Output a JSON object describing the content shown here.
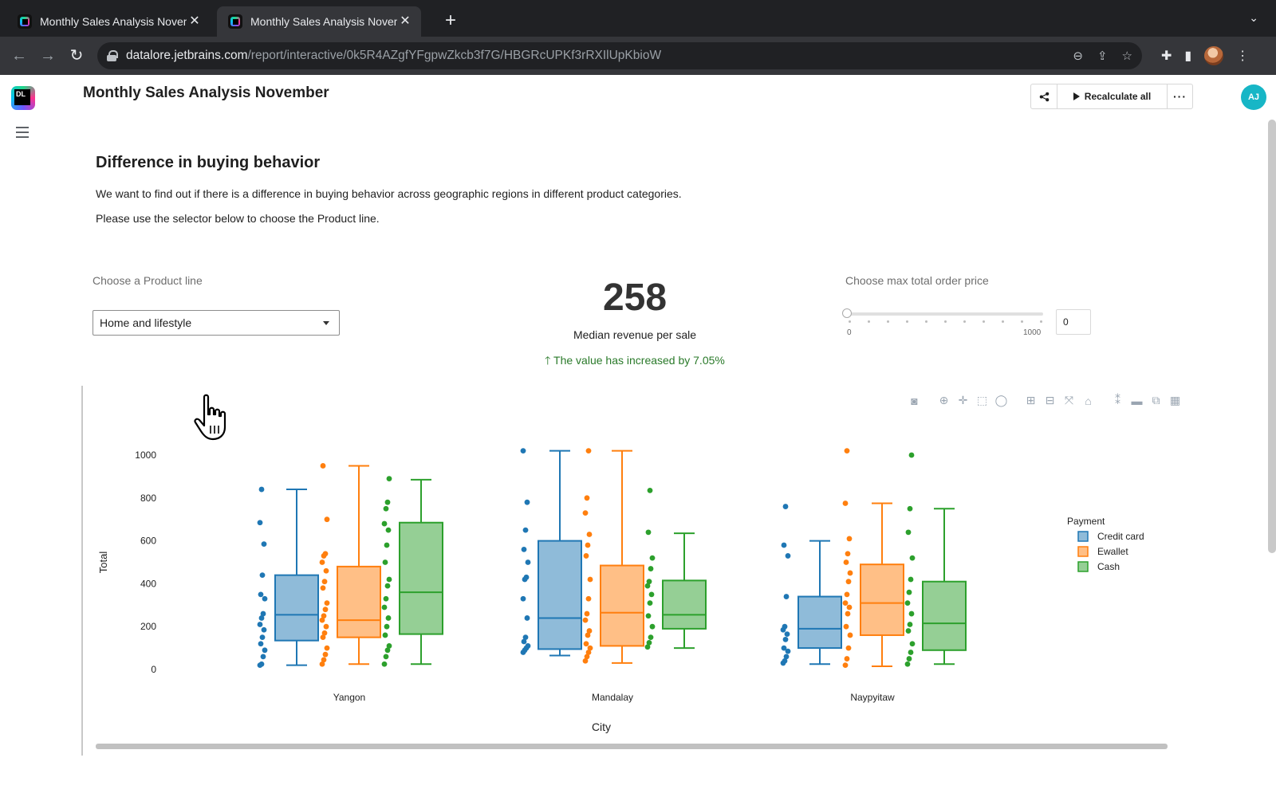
{
  "browser": {
    "tabs": [
      {
        "title": "Monthly Sales Analysis November",
        "active": false
      },
      {
        "title": "Monthly Sales Analysis November",
        "active": true
      }
    ],
    "url_host": "datalore.jetbrains.com",
    "url_path": "/report/interactive/0k5R4AZgfYFgpwZkcb3f7G/HBGRcUPKf3rRXIlUpKbioW"
  },
  "app": {
    "logo_text": "DL",
    "report_title": "Monthly Sales Analysis November",
    "recalculate_label": "Recalculate all",
    "more_label": "···",
    "user_initials": "AJ"
  },
  "section": {
    "title": "Difference in buying behavior",
    "paragraph1": "We want to find out if there is a difference in buying behavior across geographic regions in different product categories.",
    "paragraph2": "Please use the selector below to choose the Product line."
  },
  "controls": {
    "product_label": "Choose a Product line",
    "product_value": "Home and lifestyle",
    "kpi_value": "258",
    "kpi_label": "Median revenue per sale",
    "kpi_delta": "The value has increased by 7.05%",
    "price_label": "Choose max total order price",
    "slider_min": "0",
    "slider_max": "1000",
    "slider_value_fraction": 0,
    "price_input_value": "0"
  },
  "colors": {
    "credit_card": "#1f77b4",
    "ewallet": "#ff7f0e",
    "cash": "#2ca02c",
    "kpi_up": "#2a7a2a"
  },
  "chart_data": {
    "type": "box",
    "xlabel": "City",
    "ylabel": "Total",
    "ylim": [
      0,
      1000
    ],
    "yticks": [
      0,
      200,
      400,
      600,
      800,
      1000
    ],
    "categories": [
      "Yangon",
      "Mandalay",
      "Naypyitaw"
    ],
    "legend_title": "Payment",
    "legend_position": "top-right",
    "series": [
      {
        "name": "Credit card",
        "color": "#1f77b4",
        "boxes": [
          {
            "min": 20,
            "q1": 135,
            "median": 255,
            "q3": 440,
            "max": 840,
            "points": [
              20,
              25,
              60,
              90,
              120,
              150,
              185,
              210,
              240,
              260,
              330,
              350,
              440,
              585,
              685,
              840
            ]
          },
          {
            "min": 65,
            "q1": 95,
            "median": 240,
            "q3": 600,
            "max": 1020,
            "points": [
              80,
              90,
              100,
              110,
              130,
              150,
              240,
              330,
              420,
              430,
              500,
              560,
              650,
              780,
              1020
            ]
          },
          {
            "min": 25,
            "q1": 100,
            "median": 190,
            "q3": 340,
            "max": 600,
            "points": [
              30,
              40,
              60,
              85,
              100,
              140,
              165,
              185,
              200,
              340,
              530,
              580,
              760
            ]
          }
        ]
      },
      {
        "name": "Ewallet",
        "color": "#ff7f0e",
        "boxes": [
          {
            "min": 25,
            "q1": 150,
            "median": 230,
            "q3": 480,
            "max": 950,
            "points": [
              25,
              45,
              70,
              100,
              150,
              170,
              200,
              230,
              250,
              280,
              310,
              380,
              410,
              460,
              500,
              530,
              540,
              700,
              950
            ]
          },
          {
            "min": 30,
            "q1": 110,
            "median": 265,
            "q3": 485,
            "max": 1020,
            "points": [
              40,
              60,
              80,
              100,
              120,
              160,
              180,
              230,
              260,
              330,
              420,
              530,
              580,
              630,
              730,
              800,
              1020
            ]
          },
          {
            "min": 15,
            "q1": 160,
            "median": 310,
            "q3": 490,
            "max": 775,
            "points": [
              20,
              50,
              100,
              160,
              200,
              260,
              290,
              310,
              350,
              410,
              450,
              500,
              540,
              610,
              775,
              1020
            ]
          }
        ]
      },
      {
        "name": "Cash",
        "color": "#2ca02c",
        "boxes": [
          {
            "min": 25,
            "q1": 165,
            "median": 360,
            "q3": 685,
            "max": 885,
            "points": [
              25,
              60,
              90,
              110,
              160,
              200,
              240,
              290,
              330,
              390,
              420,
              500,
              580,
              650,
              680,
              750,
              780,
              890
            ]
          },
          {
            "min": 100,
            "q1": 190,
            "median": 255,
            "q3": 415,
            "max": 635,
            "points": [
              105,
              125,
              150,
              200,
              250,
              310,
              350,
              390,
              410,
              470,
              520,
              640,
              835
            ]
          },
          {
            "min": 25,
            "q1": 90,
            "median": 215,
            "q3": 410,
            "max": 750,
            "points": [
              25,
              50,
              80,
              120,
              180,
              210,
              260,
              310,
              360,
              420,
              520,
              640,
              750,
              1000
            ]
          }
        ]
      }
    ]
  }
}
